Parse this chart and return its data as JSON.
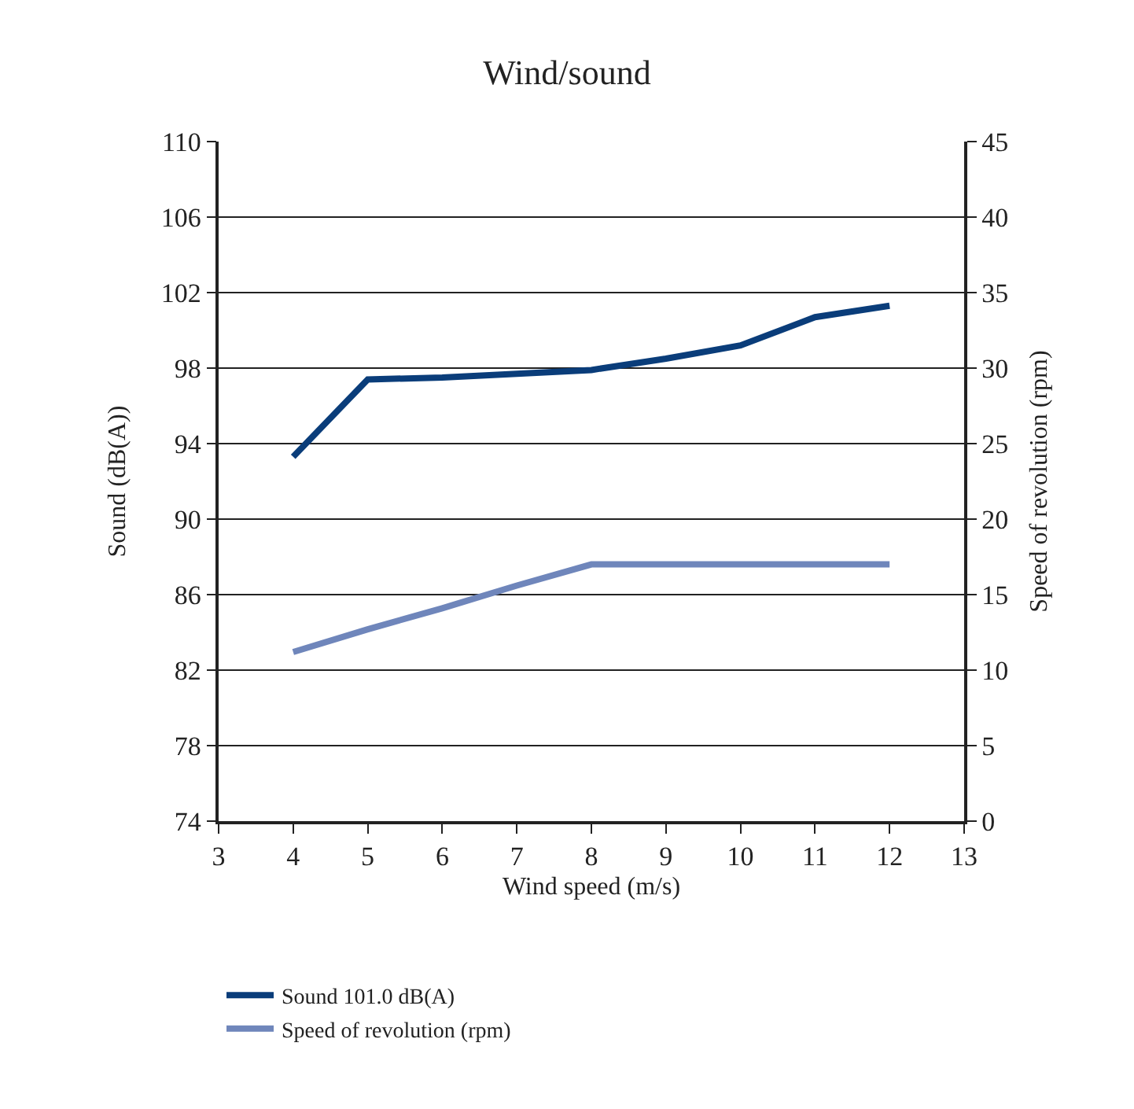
{
  "chart_data": {
    "type": "line",
    "title": "Wind/sound",
    "xlabel": "Wind speed (m/s)",
    "ylabel": "Sound (dB(A))",
    "y2label": "Speed of revolution (rpm)",
    "xlim": [
      3,
      13
    ],
    "xticks": [
      3,
      4,
      5,
      6,
      7,
      8,
      9,
      10,
      11,
      12,
      13
    ],
    "ylim": [
      74,
      110
    ],
    "yticks": [
      74,
      78,
      82,
      86,
      90,
      94,
      98,
      102,
      106,
      110
    ],
    "y2lim": [
      0,
      45
    ],
    "y2ticks": [
      0,
      5,
      10,
      15,
      20,
      25,
      30,
      35,
      40,
      45
    ],
    "grid": "y",
    "legend": "bottom left",
    "marker": "none",
    "line_style": "solid",
    "x": [
      4,
      5,
      6,
      7,
      8,
      9,
      10,
      11,
      12
    ],
    "series": [
      {
        "name": "Sound 101.0 dB(A)",
        "color": "#0a3d7a",
        "values": [
          93.3,
          97.4,
          97.5,
          97.7,
          97.9,
          98.5,
          99.2,
          100.7,
          101.3
        ]
      },
      {
        "name": "Speed of revolution (rpm)",
        "color": "#6f86bb",
        "axis": "y2",
        "values": [
          11.2,
          12.7,
          14.1,
          15.6,
          17,
          17,
          17,
          17,
          17
        ]
      }
    ]
  }
}
